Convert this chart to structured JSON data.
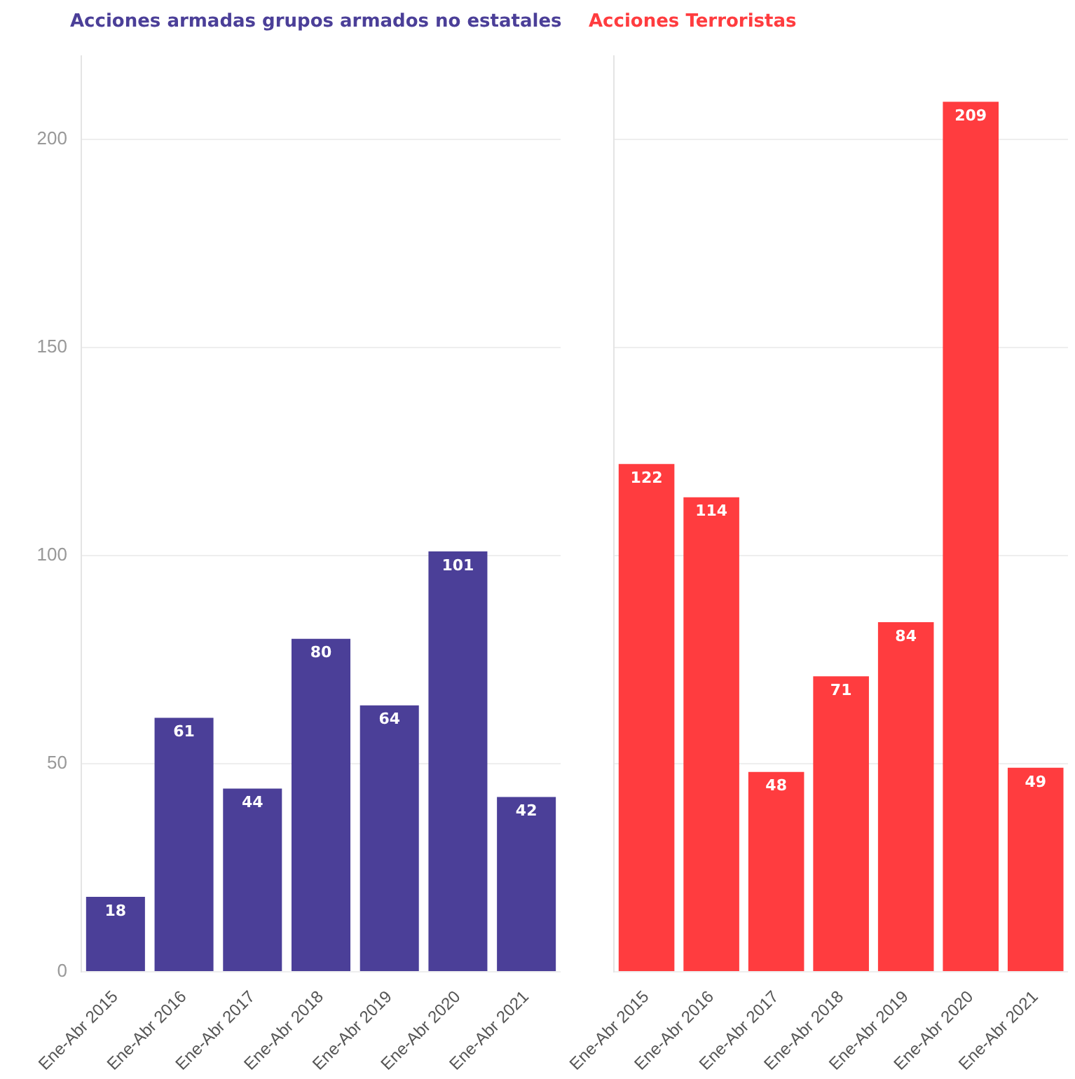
{
  "chart_data": [
    {
      "type": "bar",
      "title": "Acciones armadas grupos armados no estatales",
      "categories": [
        "Ene-Abr 2015",
        "Ene-Abr 2016",
        "Ene-Abr 2017",
        "Ene-Abr 2018",
        "Ene-Abr 2019",
        "Ene-Abr 2020",
        "Ene-Abr 2021"
      ],
      "series": [
        {
          "color": "#4b3f98",
          "values": [
            18,
            61,
            44,
            80,
            64,
            101,
            42
          ]
        }
      ],
      "ylim": [
        0,
        220
      ],
      "yticks": [
        0,
        50,
        100,
        150,
        200
      ],
      "grid": "y",
      "legend": false,
      "data_labels": true
    },
    {
      "type": "bar",
      "title": "Acciones Terroristas",
      "categories": [
        "Ene-Abr 2015",
        "Ene-Abr 2016",
        "Ene-Abr 2017",
        "Ene-Abr 2018",
        "Ene-Abr 2019",
        "Ene-Abr 2020",
        "Ene-Abr 2021"
      ],
      "series": [
        {
          "color": "#ff3c3f",
          "values": [
            122,
            114,
            48,
            71,
            84,
            209,
            49
          ]
        }
      ],
      "ylim": [
        0,
        220
      ],
      "yticks": [
        0,
        50,
        100,
        150,
        200
      ],
      "grid": "y",
      "legend": false,
      "data_labels": true,
      "tick_labels": "x"
    }
  ]
}
